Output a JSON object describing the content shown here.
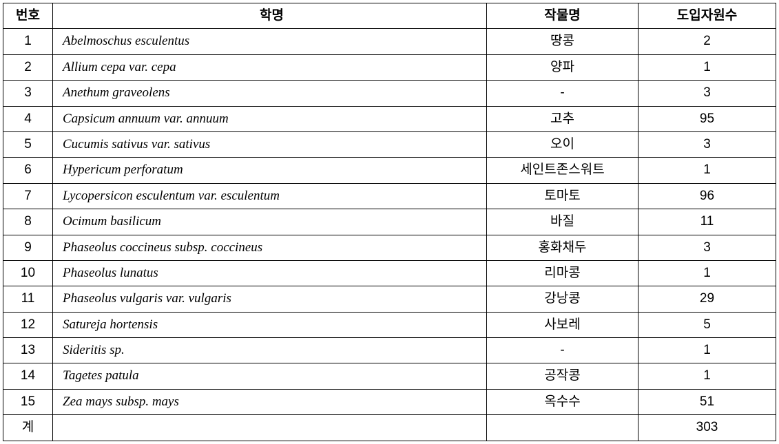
{
  "table": {
    "headers": {
      "num": "번호",
      "sci": "학명",
      "crop": "작물명",
      "count": "도입자원수"
    },
    "rows": [
      {
        "num": "1",
        "sci": "Abelmoschus esculentus",
        "crop": "땅콩",
        "count": "2"
      },
      {
        "num": "2",
        "sci": "Allium cepa var. cepa",
        "crop": "양파",
        "count": "1"
      },
      {
        "num": "3",
        "sci": "Anethum graveolens",
        "crop": "-",
        "count": "3"
      },
      {
        "num": "4",
        "sci": "Capsicum annuum var. annuum",
        "crop": "고추",
        "count": "95"
      },
      {
        "num": "5",
        "sci": "Cucumis sativus var. sativus",
        "crop": "오이",
        "count": "3"
      },
      {
        "num": "6",
        "sci": "Hypericum perforatum",
        "crop": "세인트존스워트",
        "count": "1"
      },
      {
        "num": "7",
        "sci": "Lycopersicon esculentum var.  esculentum",
        "crop": "토마토",
        "count": "96"
      },
      {
        "num": "8",
        "sci": "Ocimum basilicum",
        "crop": "바질",
        "count": "11"
      },
      {
        "num": "9",
        "sci": "Phaseolus coccineus subsp.  coccineus",
        "crop": "홍화채두",
        "count": "3"
      },
      {
        "num": "10",
        "sci": "Phaseolus lunatus",
        "crop": "리마콩",
        "count": "1"
      },
      {
        "num": "11",
        "sci": "Phaseolus vulgaris var.  vulgaris",
        "crop": "강낭콩",
        "count": "29"
      },
      {
        "num": "12",
        "sci": "Satureja hortensis",
        "crop": "사보레",
        "count": "5"
      },
      {
        "num": "13",
        "sci": "Sideritis sp.",
        "crop": "-",
        "count": "1"
      },
      {
        "num": "14",
        "sci": "Tagetes patula",
        "crop": "공작콩",
        "count": "1"
      },
      {
        "num": "15",
        "sci": "Zea mays subsp. mays",
        "crop": "옥수수",
        "count": "51"
      }
    ],
    "total": {
      "label": "계",
      "sci": "",
      "crop": "",
      "count": "303"
    }
  }
}
